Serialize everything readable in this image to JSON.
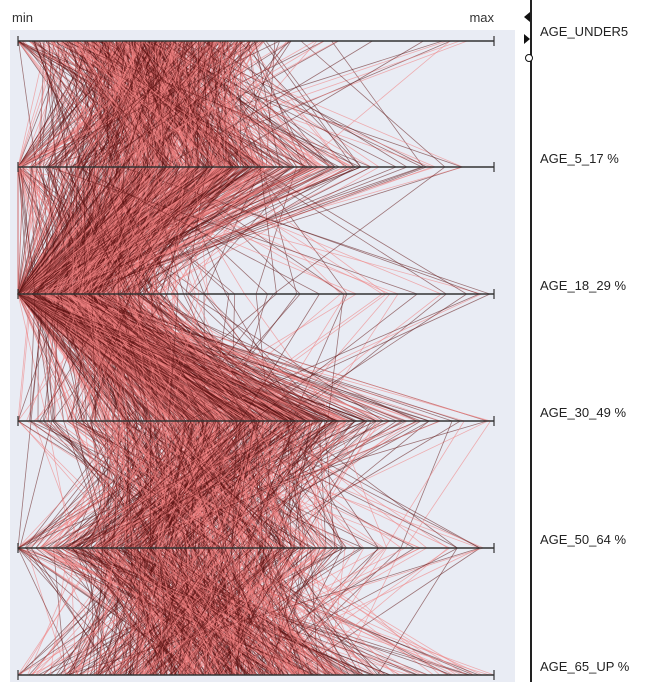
{
  "header": {
    "min_label": "min",
    "max_label": "max"
  },
  "colors": {
    "panel_bg": "#e9ecf4",
    "axis": "#333333",
    "line_dark": "#5e1414",
    "line_light": "#f08282"
  },
  "chart_data": {
    "type": "parallel-coordinates",
    "axes": [
      "AGE_UNDER5",
      "AGE_5_17 %",
      "AGE_18_29 %",
      "AGE_30_49 %",
      "AGE_50_64 %",
      "AGE_65_UP %"
    ],
    "scale": "normalized min to max per axis",
    "series": [
      {
        "color_group": "dark",
        "color": "#5e1414"
      },
      {
        "color_group": "light",
        "color": "#f08282"
      }
    ],
    "distribution_hints": {
      "AGE_UNDER5": {
        "center": 0.27,
        "spread": 0.13
      },
      "AGE_5_17 %": {
        "center": 0.3,
        "spread": 0.16
      },
      "AGE_18_29 %": {
        "center": 0.1,
        "spread": 0.1
      },
      "AGE_30_49 %": {
        "center": 0.4,
        "spread": 0.16
      },
      "AGE_50_64 %": {
        "center": 0.35,
        "spread": 0.15
      },
      "AGE_65_UP %": {
        "center": 0.4,
        "spread": 0.17
      }
    },
    "legend": "none",
    "grid": false
  }
}
